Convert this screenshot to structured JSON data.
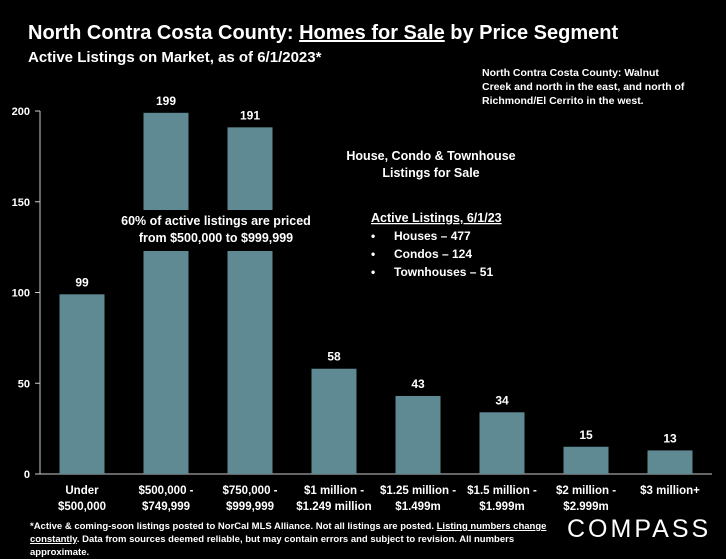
{
  "header": {
    "title_pre": "North Contra Costa County: ",
    "title_link": "Homes for Sale",
    "title_post": " by Price Segment",
    "subtitle": "Active Listings on Market, as of 6/1/2023*"
  },
  "area_note": "North Contra Costa County: Walnut Creek and north in the east, and north of Richmond/El Cerrito in the west.",
  "footnote": {
    "part1": "*Active & coming-soon listings posted to NorCal MLS Alliance. Not all listings are posted. ",
    "link": "Listing numbers change constantly",
    "part2": ". Data from sources deemed reliable, but may contain errors and subject to revision. All numbers approximate."
  },
  "logo": "COMPASS",
  "colors": {
    "bar": "#5f8a93",
    "background": "#000000",
    "text": "#ffffff",
    "axis": "#cccccc"
  },
  "chart_data": {
    "type": "bar",
    "categories": [
      [
        "Under",
        "$500,000"
      ],
      [
        "$500,000 -",
        "$749,999"
      ],
      [
        "$750,000 -",
        "$999,999"
      ],
      [
        "$1 million -",
        "$1.249 million"
      ],
      [
        "$1.25 million -",
        "$1.499m"
      ],
      [
        "$1.5 million -",
        "$1.999m"
      ],
      [
        "$2 million -",
        "$2.999m"
      ],
      [
        "$3 million+"
      ]
    ],
    "values": [
      99,
      199,
      191,
      58,
      43,
      34,
      15,
      13
    ],
    "data_labels": [
      "99",
      "199",
      "191",
      "58",
      "43",
      "34",
      "15",
      "13"
    ],
    "ylim": [
      0,
      200
    ],
    "yticks": [
      0,
      50,
      100,
      150,
      200
    ],
    "grid": false,
    "annotations": {
      "callout": [
        "60% of active listings are priced",
        "from $500,000 to $999,999"
      ],
      "listing_types": [
        "House, Condo & Townhouse",
        "Listings for Sale"
      ],
      "active_heading": "Active Listings, 6/1/23",
      "active_items": [
        "Houses – 477",
        "Condos – 124",
        "Townhouses – 51"
      ],
      "bullet": "•"
    }
  }
}
